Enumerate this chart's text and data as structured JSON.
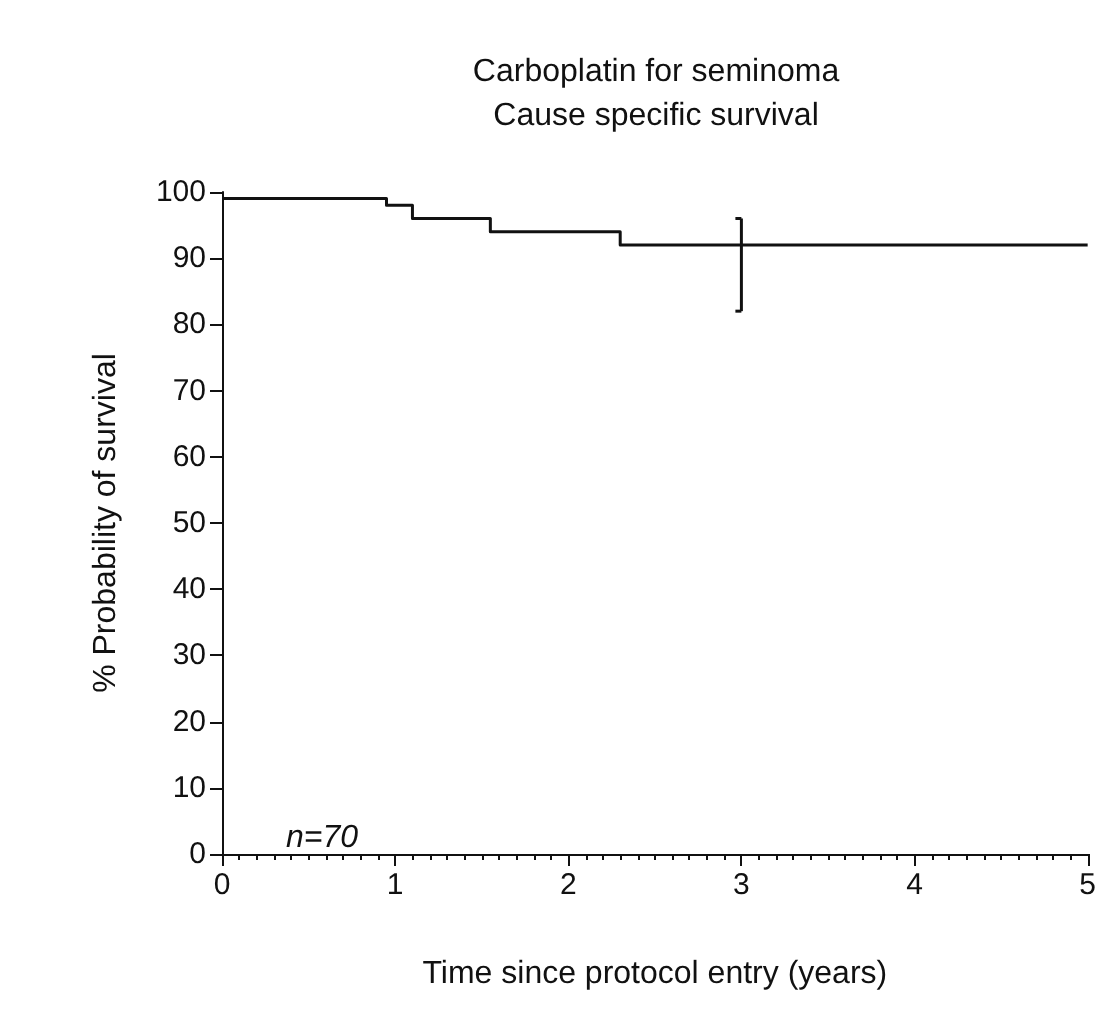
{
  "chart_data": {
    "type": "step",
    "title": "Carboplatin for seminoma\nCause specific survival",
    "xlabel": "Time since protocol entry (years)",
    "ylabel": "% Probability of survival",
    "x": [
      0,
      0.95,
      1.1,
      1.55,
      2.3,
      3,
      5
    ],
    "values": [
      99,
      98,
      96,
      94,
      92,
      92,
      92
    ],
    "errors": [
      null,
      null,
      null,
      null,
      null,
      [
        82,
        96
      ],
      null
    ],
    "color": "#111111",
    "marker": "none",
    "line_style": "solid",
    "grid": false,
    "xlim": [
      0,
      5
    ],
    "xticks": [
      0,
      1,
      2,
      3,
      4,
      5
    ],
    "ylim": [
      0,
      100
    ],
    "yticks": [
      0,
      10,
      20,
      30,
      40,
      50,
      60,
      70,
      80,
      90,
      100
    ],
    "annotations": [
      "n=70"
    ]
  }
}
